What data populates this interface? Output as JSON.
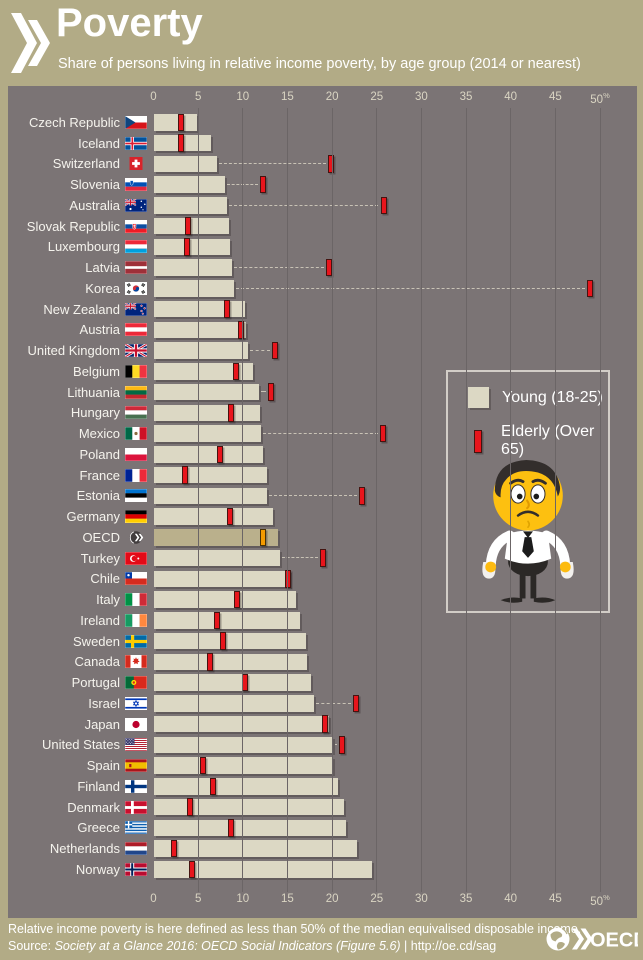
{
  "header": {
    "title": "Poverty",
    "subtitle": "Share of persons living in relative income poverty, by age group (2014 or nearest)"
  },
  "axis": {
    "ticks": [
      0,
      5,
      10,
      15,
      20,
      25,
      30,
      35,
      40,
      45,
      50
    ],
    "unit": "%",
    "min": 0,
    "max": 50
  },
  "legend": {
    "young_label": "Young (18-25)",
    "elderly_label": "Elderly (Over 65)"
  },
  "chart_data": {
    "type": "bar",
    "orientation": "horizontal",
    "title": "Share of persons living in relative income poverty, by age group (2014 or nearest)",
    "xlim": [
      0,
      50
    ],
    "grid": true,
    "legend_position": "right-middle",
    "categories": [
      "Czech Republic",
      "Iceland",
      "Switzerland",
      "Slovenia",
      "Australia",
      "Slovak Republic",
      "Luxembourg",
      "Latvia",
      "Korea",
      "New Zealand",
      "Austria",
      "United Kingdom",
      "Belgium",
      "Lithuania",
      "Hungary",
      "Mexico",
      "Poland",
      "France",
      "Estonia",
      "Germany",
      "OECD",
      "Turkey",
      "Chile",
      "Italy",
      "Ireland",
      "Sweden",
      "Canada",
      "Portugal",
      "Israel",
      "Japan",
      "United States",
      "Spain",
      "Finland",
      "Denmark",
      "Greece",
      "Netherlands",
      "Norway"
    ],
    "flags": [
      "cz",
      "is",
      "ch",
      "si",
      "au",
      "sk",
      "lu",
      "lv",
      "kr",
      "nz",
      "at",
      "gb",
      "be",
      "lt",
      "hu",
      "mx",
      "pl",
      "fr",
      "ee",
      "de",
      "oecd",
      "tr",
      "cl",
      "it",
      "ie",
      "se",
      "ca",
      "pt",
      "il",
      "jp",
      "us",
      "es",
      "fi",
      "dk",
      "gr",
      "nl",
      "no"
    ],
    "series": [
      {
        "name": "Young (18-25)",
        "mark": "bar",
        "color": "#dcd8c4",
        "values": [
          4.8,
          6.4,
          7.0,
          8.0,
          8.2,
          8.4,
          8.5,
          8.7,
          9.0,
          10.2,
          10.3,
          10.5,
          11.1,
          11.8,
          11.9,
          12.0,
          12.2,
          12.6,
          12.7,
          13.3,
          13.9,
          14.1,
          15.2,
          15.9,
          16.4,
          17.0,
          17.1,
          17.6,
          17.9,
          19.6,
          20.0,
          20.1,
          20.6,
          21.3,
          21.5,
          22.7,
          24.4
        ]
      },
      {
        "name": "Elderly (Over 65)",
        "mark": "tick",
        "color": "#e8151c",
        "values": [
          3.0,
          3.0,
          19.8,
          12.2,
          25.7,
          3.8,
          3.7,
          19.6,
          48.8,
          8.2,
          9.7,
          13.5,
          9.2,
          13.1,
          8.6,
          25.6,
          7.4,
          3.5,
          23.3,
          8.5,
          12.2,
          18.9,
          15.0,
          9.3,
          7.1,
          7.7,
          6.3,
          10.2,
          22.6,
          19.1,
          21.0,
          5.5,
          6.6,
          4.0,
          8.6,
          2.2,
          4.3
        ]
      }
    ],
    "highlight": {
      "category": "OECD",
      "bar_color": "#bab08c",
      "marker_color": "#f49b00"
    }
  },
  "footer": {
    "note": "Relative income poverty is here defined as less than 50% of the median equivalised disposable income.",
    "source_prefix": "Source: ",
    "source_title": "Society at a Glance 2016: OECD Social Indicators (Figure 5.6)",
    "source_suffix": " | http://oe.cd/sag",
    "logo_text": "OECD"
  },
  "colors": {
    "header_bg": "#b2ab86",
    "panel_bg": "#7b7475",
    "bar": "#dcd8c4",
    "oecd_bar": "#bab08c",
    "elderly_marker": "#e8151c",
    "oecd_marker": "#f49b00",
    "gridline": "#6b6566",
    "text": "#ffffff"
  }
}
